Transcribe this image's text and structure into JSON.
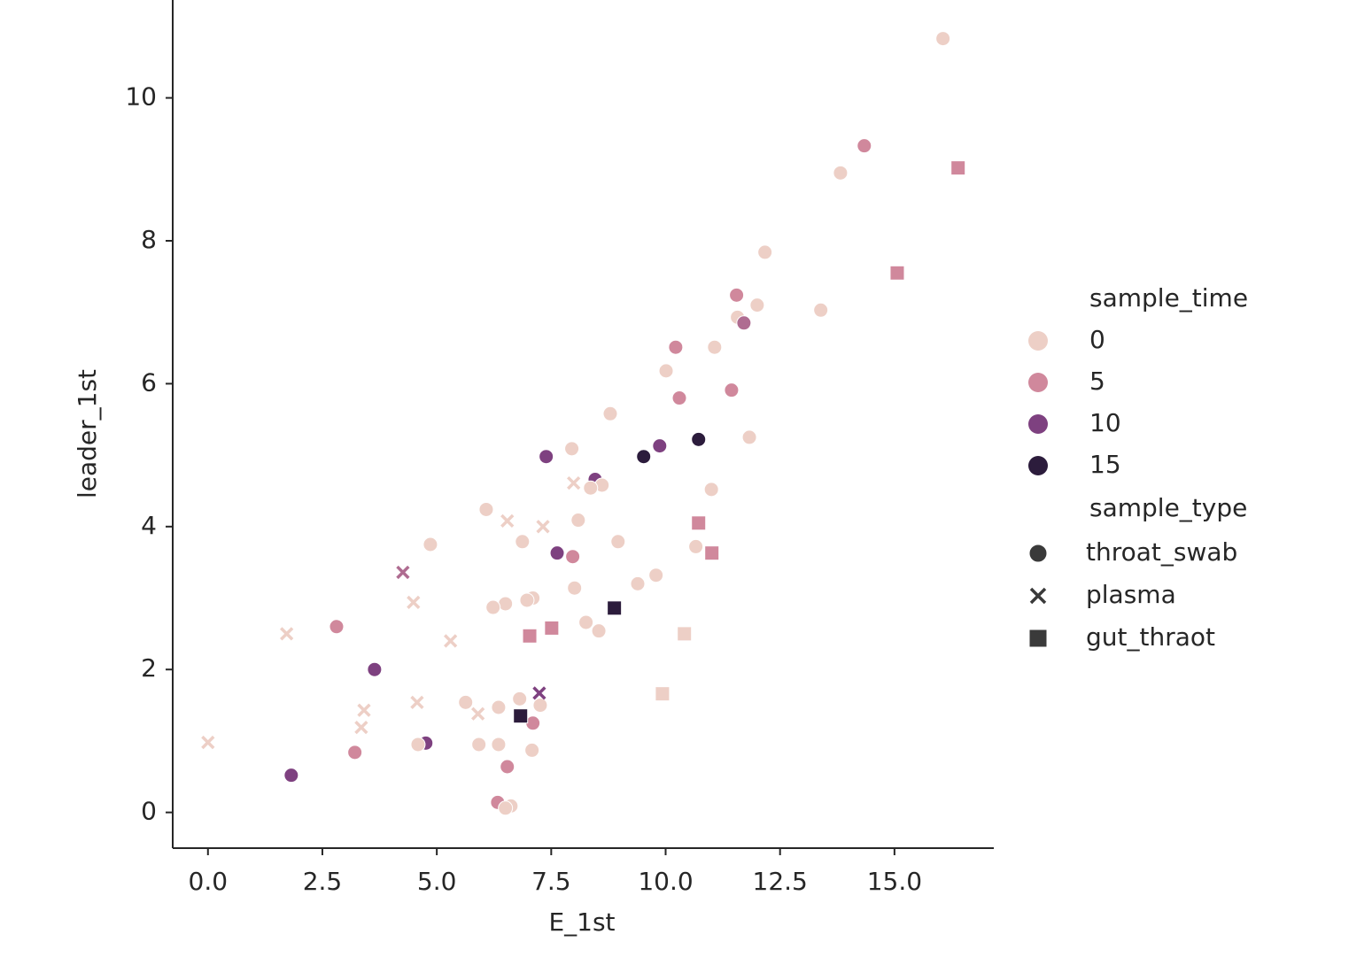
{
  "chart_data": {
    "type": "scatter",
    "x_label": "E_1st",
    "y_label": "leader_1st",
    "xlim": [
      -0.77,
      17.17
    ],
    "ylim": [
      -0.5,
      11.37
    ],
    "xticks": [
      {
        "value": 0,
        "label": "0.0"
      },
      2.5,
      {
        "value": 5,
        "label": "5.0"
      },
      7.5,
      {
        "value": 10,
        "label": "10.0"
      },
      12.5,
      {
        "value": 15,
        "label": "15.0"
      }
    ],
    "yticks": [
      0,
      2,
      4,
      6,
      8,
      10
    ],
    "hue_legend": {
      "title": "sample_time",
      "levels": [
        {
          "value": 0,
          "color": "#edcfc6"
        },
        {
          "value": 5,
          "color": "#d0889c"
        },
        {
          "value": 10,
          "color": "#7e4180"
        },
        {
          "value": 15,
          "color": "#2c1c3c"
        }
      ]
    },
    "style_title": "sample_type",
    "series": [
      {
        "name": "throat_swab",
        "marker": "circle",
        "x": [
          16.06,
          14.34,
          13.82,
          12.17,
          11.55,
          12.0,
          13.39,
          11.57,
          11.71,
          10.22,
          11.07,
          10.01,
          11.44,
          10.3,
          8.79,
          11.83,
          10.72,
          9.87,
          7.95,
          9.52,
          7.39,
          8.46,
          8.61,
          8.36,
          11.0,
          6.08,
          8.09,
          4.86,
          6.87,
          8.96,
          10.66,
          7.63,
          7.97,
          9.79,
          9.39,
          8.01,
          7.1,
          6.97,
          6.5,
          6.23,
          8.26,
          8.54,
          2.81,
          3.64,
          6.81,
          5.63,
          6.35,
          7.26,
          7.1,
          4.76,
          4.59,
          5.92,
          6.35,
          7.08,
          3.21,
          6.54,
          1.82,
          6.33,
          6.62,
          6.5
        ],
        "y": [
          10.83,
          9.33,
          8.95,
          7.84,
          7.24,
          7.1,
          7.03,
          6.93,
          6.85,
          6.51,
          6.51,
          6.18,
          5.91,
          5.8,
          5.58,
          5.25,
          5.22,
          5.13,
          5.09,
          4.98,
          4.98,
          4.66,
          4.58,
          4.54,
          4.52,
          4.24,
          4.09,
          3.75,
          3.79,
          3.79,
          3.72,
          3.63,
          3.58,
          3.32,
          3.2,
          3.14,
          3.0,
          2.97,
          2.92,
          2.87,
          2.66,
          2.54,
          2.6,
          2.0,
          1.59,
          1.54,
          1.47,
          1.5,
          1.25,
          0.97,
          0.95,
          0.95,
          0.95,
          0.87,
          0.84,
          0.64,
          0.52,
          0.14,
          0.09,
          0.06
        ],
        "hue": [
          0,
          5,
          0,
          0,
          5,
          0,
          0,
          0,
          7,
          5,
          0,
          0,
          5,
          5,
          0,
          0,
          15,
          10,
          0,
          15,
          10,
          10,
          0,
          0,
          0,
          0,
          0,
          0,
          0,
          0,
          0,
          10,
          5,
          0,
          0,
          0,
          0,
          0,
          0,
          0,
          0,
          0,
          5,
          10,
          0,
          0,
          0,
          0,
          5,
          10,
          0,
          0,
          0,
          0,
          5,
          5,
          10,
          5,
          0,
          0
        ]
      },
      {
        "name": "plasma",
        "marker": "x",
        "x": [
          7.99,
          6.54,
          7.32,
          4.26,
          4.49,
          1.72,
          5.3,
          7.24,
          4.57,
          3.41,
          5.9,
          3.35,
          0.0
        ],
        "y": [
          4.61,
          4.08,
          4.0,
          3.36,
          2.94,
          2.5,
          2.4,
          1.67,
          1.54,
          1.43,
          1.38,
          1.19,
          0.98
        ],
        "hue": [
          0,
          0,
          0,
          7,
          0,
          0,
          0,
          10,
          0,
          0,
          0,
          0,
          0
        ]
      },
      {
        "name": "gut_thraot",
        "marker": "square",
        "x": [
          16.39,
          15.06,
          10.72,
          11.01,
          8.88,
          7.51,
          10.41,
          7.03,
          9.93,
          6.83
        ],
        "y": [
          9.02,
          7.55,
          4.05,
          3.63,
          2.86,
          2.58,
          2.5,
          2.47,
          1.66,
          1.35
        ],
        "hue": [
          5,
          5,
          5,
          5,
          15,
          5,
          0,
          5,
          0,
          15
        ]
      }
    ]
  }
}
